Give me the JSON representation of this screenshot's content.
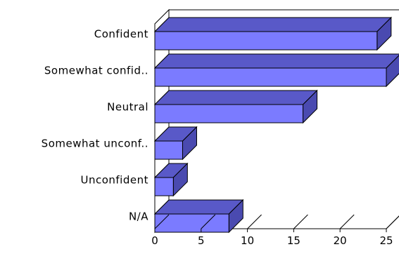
{
  "chart_data": {
    "type": "bar",
    "orientation": "horizontal",
    "style": "3d",
    "title": "",
    "xlabel": "",
    "ylabel": "",
    "categories": [
      "Confident",
      "Somewhat confid..",
      "Neutral",
      "Somewhat unconf..",
      "Unconfident",
      "N/A"
    ],
    "values": [
      24,
      25,
      16,
      3,
      2,
      8
    ],
    "xlim": [
      0,
      25
    ],
    "xticks": [
      0,
      5,
      10,
      15,
      20,
      25
    ],
    "xtick_labels": [
      "0",
      "5",
      "10",
      "15",
      "20",
      "25"
    ],
    "grid": false,
    "legend": "none",
    "colors": {
      "bar_front": "#7b7bff",
      "bar_top": "#5959c8",
      "bar_side": "#4a4ab0",
      "wall_left": "#c8c8c8",
      "outline": "#000000"
    }
  }
}
